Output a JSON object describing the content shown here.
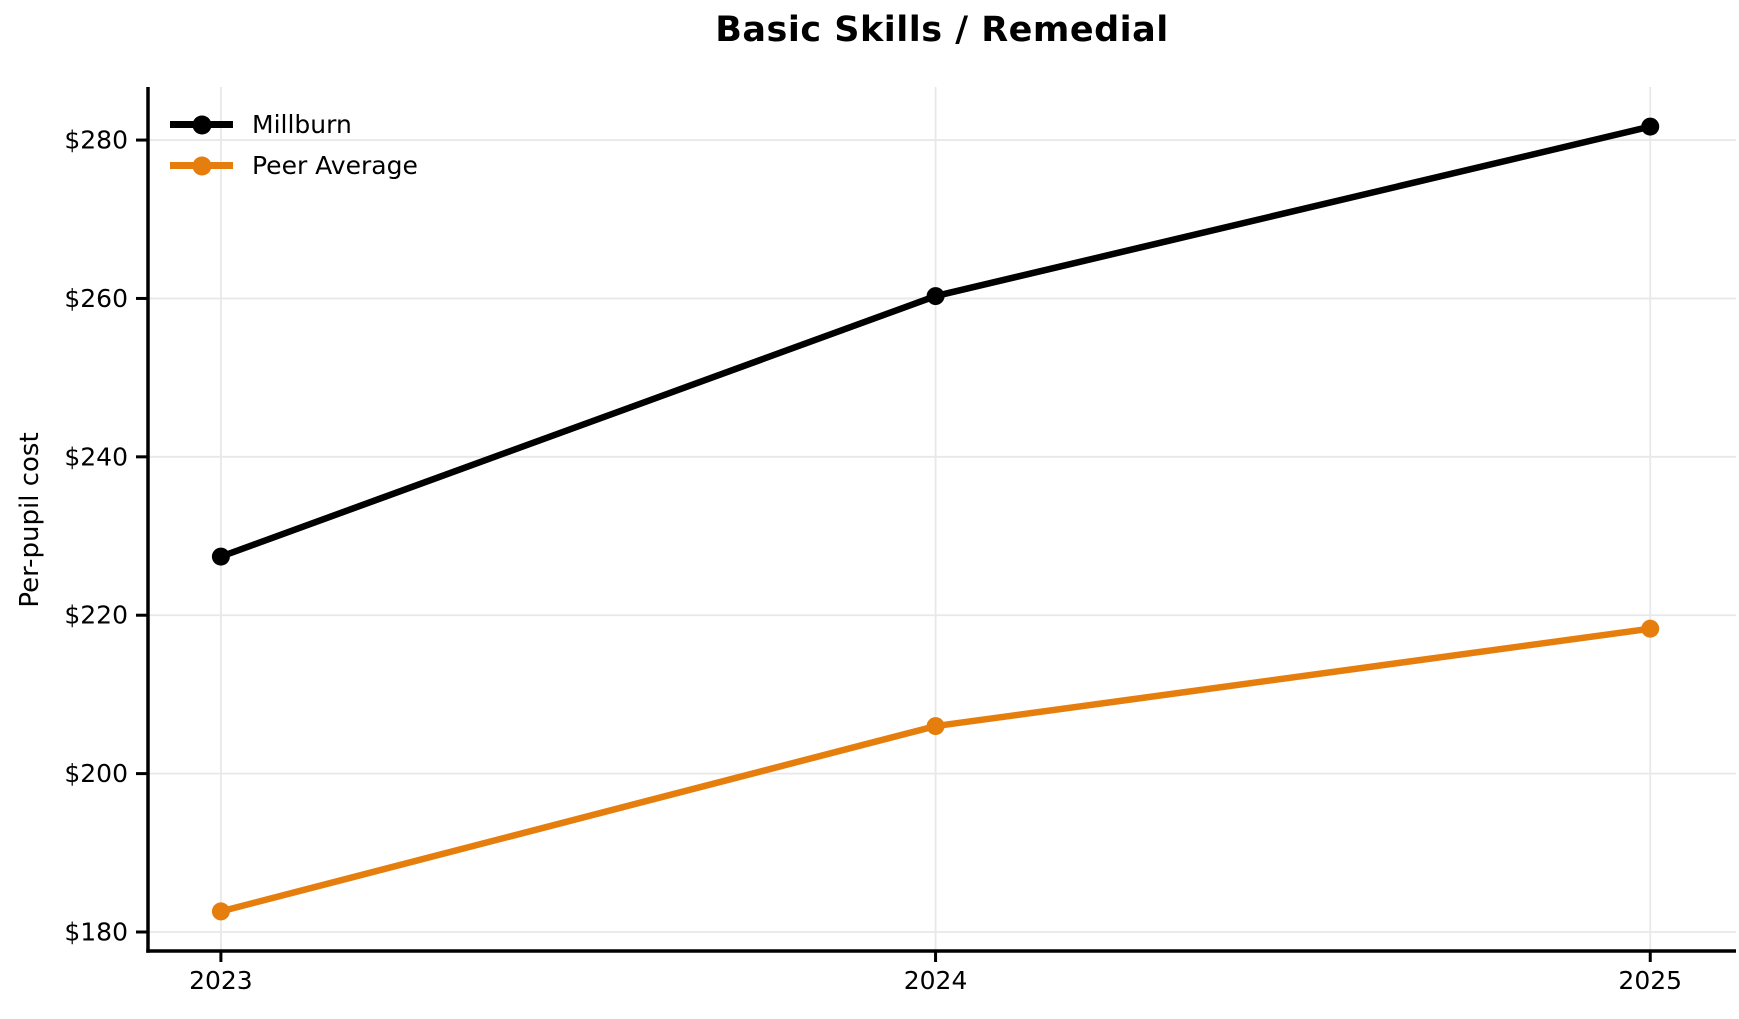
{
  "chart_data": {
    "type": "line",
    "title": "Basic Skills / Remedial",
    "xlabel": "",
    "ylabel": "Per-pupil cost",
    "x": [
      2023,
      2024,
      2025
    ],
    "series": [
      {
        "name": "Millburn",
        "color": "#000000",
        "values": [
          227.4,
          260.3,
          281.7
        ]
      },
      {
        "name": "Peer Average",
        "color": "#e67e0d",
        "values": [
          182.6,
          206.0,
          218.3
        ]
      }
    ],
    "xticks": [
      {
        "value": 2023,
        "label": "2023"
      },
      {
        "value": 2024,
        "label": "2024"
      },
      {
        "value": 2025,
        "label": "2025"
      }
    ],
    "yticks": [
      {
        "value": 180,
        "label": "$180"
      },
      {
        "value": 200,
        "label": "$200"
      },
      {
        "value": 220,
        "label": "$220"
      },
      {
        "value": 240,
        "label": "$240"
      },
      {
        "value": 260,
        "label": "$260"
      },
      {
        "value": 280,
        "label": "$280"
      }
    ],
    "xlim": [
      2022.898,
      2025.12
    ],
    "ylim": [
      177.6,
      286.7
    ],
    "grid": true,
    "legend_position": "upper-left",
    "background": "#ffffff",
    "grid_color": "#e8e8e8",
    "axis_color": "#000000",
    "line_width": 6.5,
    "marker": "circle",
    "marker_radius": 9
  }
}
